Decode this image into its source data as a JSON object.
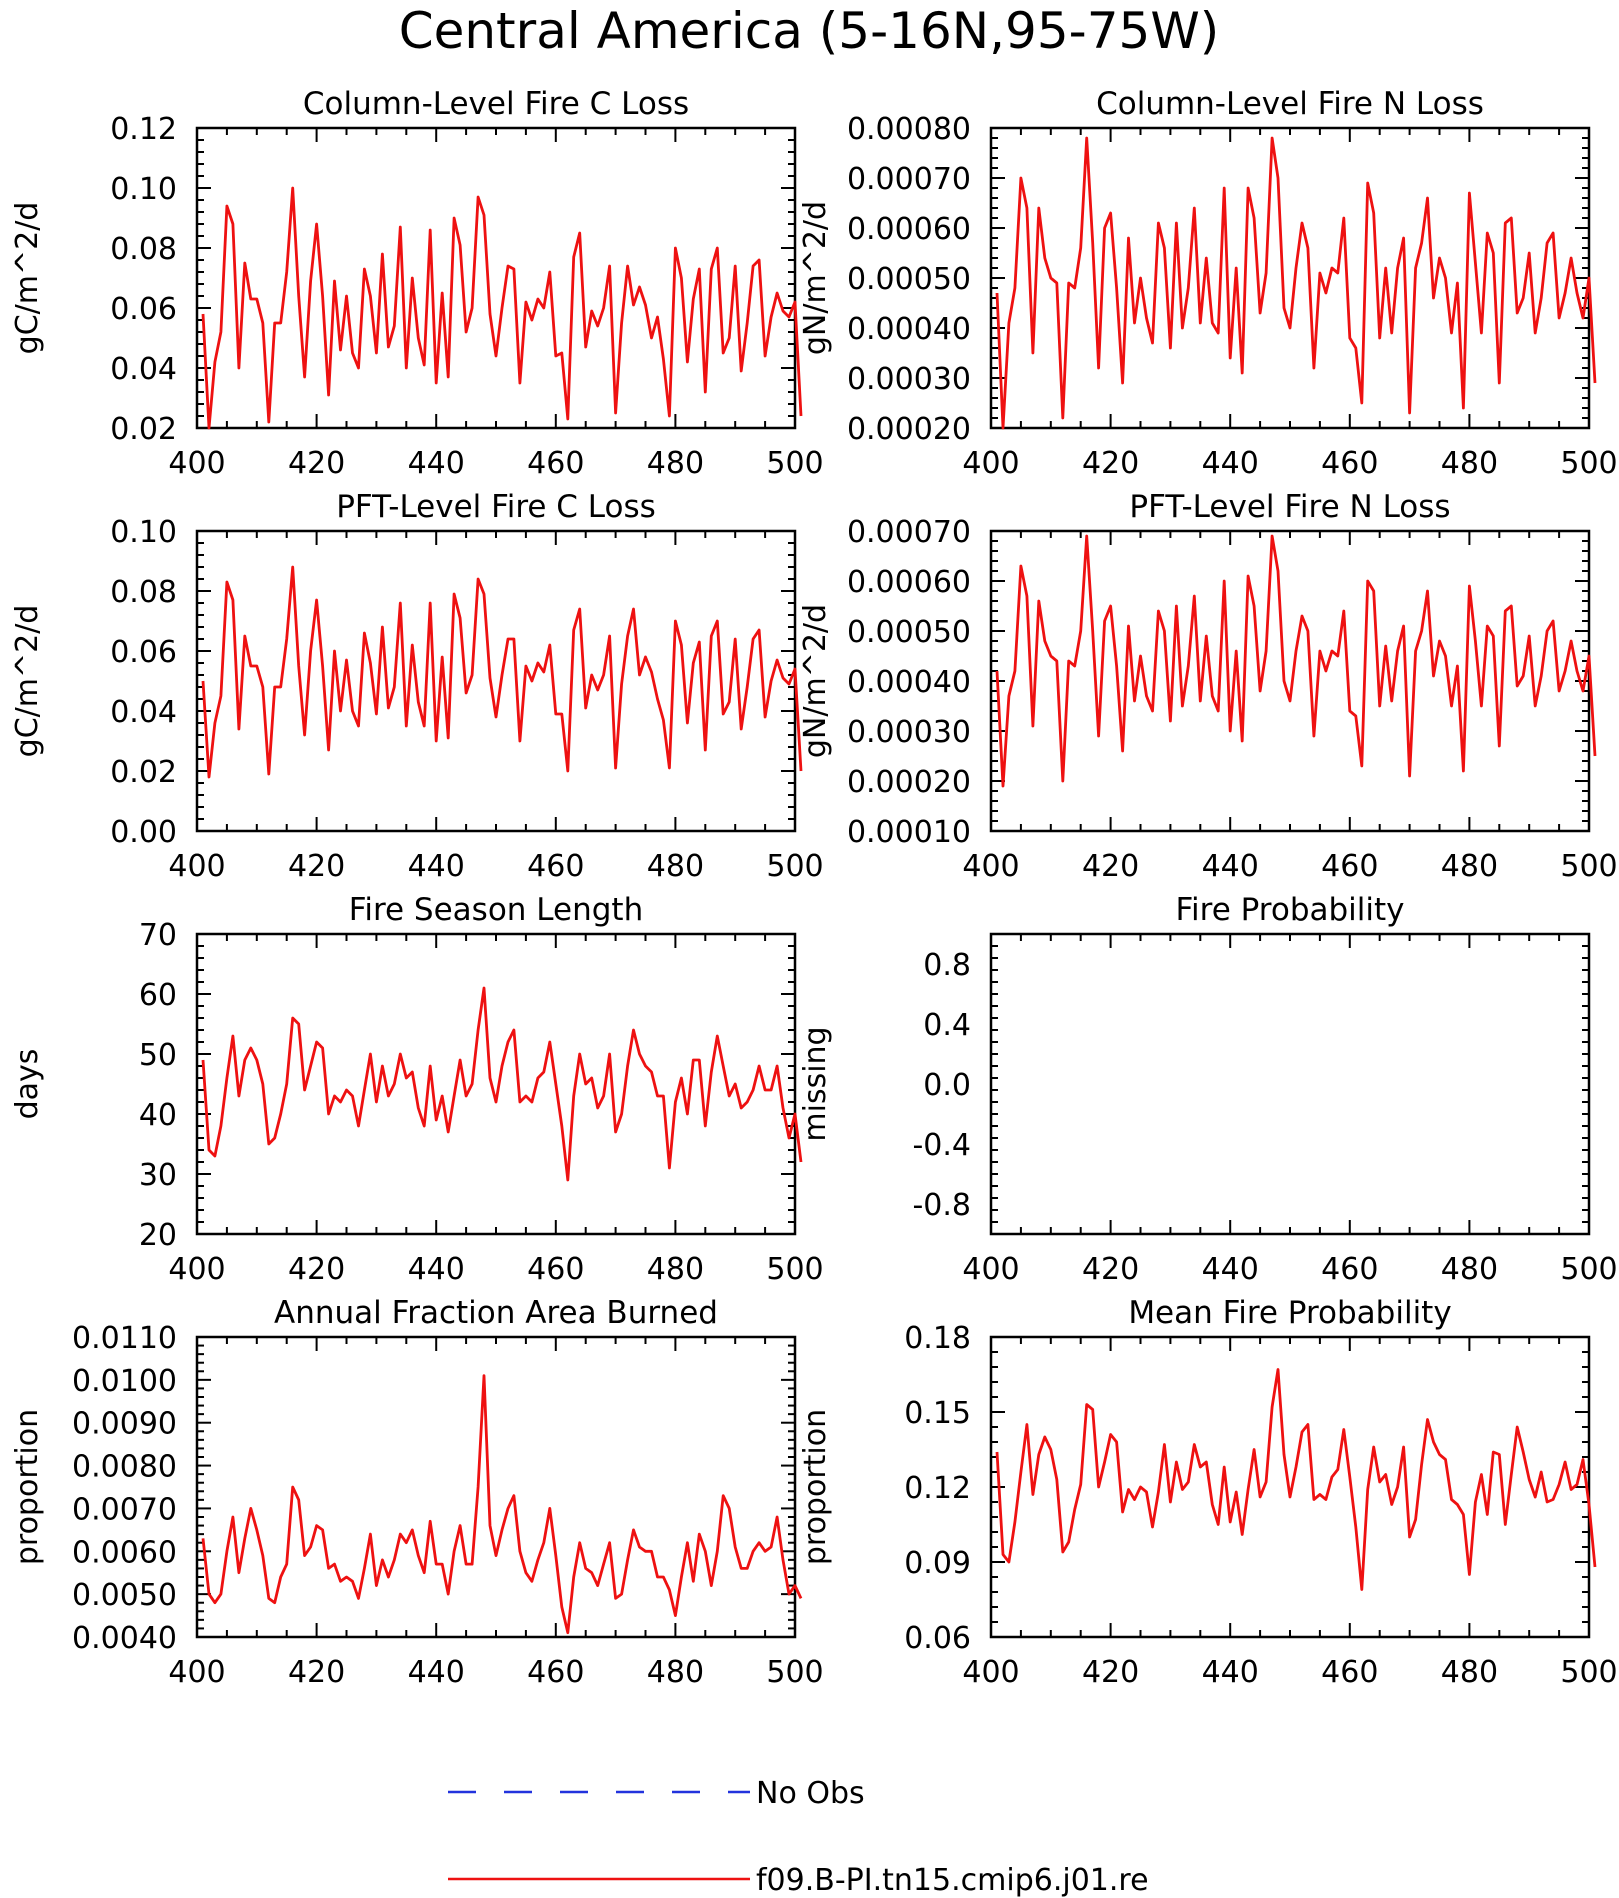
{
  "figure": {
    "title": "Central America (5-16N,95-75W)"
  },
  "legend": {
    "placement": "bottom-center",
    "entries": [
      {
        "label": "No Obs",
        "color": "#2233dd",
        "style": "dashed"
      },
      {
        "label": "f09.B-PI.tn15.cmip6.j01.re",
        "color": "#ee1111",
        "style": "solid"
      }
    ]
  },
  "chart_data": [
    {
      "type": "line",
      "title": "Column-Level Fire C Loss",
      "ylabel": "gC/m^2/d",
      "xlim": [
        400,
        500
      ],
      "ylim": [
        0.02,
        0.12
      ],
      "xticks": [
        "400",
        "420",
        "440",
        "460",
        "480",
        "500"
      ],
      "yticks": [
        "0.02",
        "0.04",
        "0.06",
        "0.08",
        "0.10",
        "0.12"
      ],
      "series": [
        {
          "name": "f09.B-PI.tn15.cmip6.j01.re",
          "color": "#ee1111",
          "x0": 401,
          "dx": 1,
          "values": [
            0.058,
            0.02,
            0.042,
            0.052,
            0.094,
            0.088,
            0.04,
            0.075,
            0.063,
            0.063,
            0.055,
            0.022,
            0.055,
            0.055,
            0.072,
            0.1,
            0.064,
            0.037,
            0.069,
            0.088,
            0.064,
            0.031,
            0.069,
            0.046,
            0.064,
            0.045,
            0.04,
            0.073,
            0.064,
            0.045,
            0.078,
            0.047,
            0.054,
            0.087,
            0.04,
            0.07,
            0.05,
            0.041,
            0.086,
            0.035,
            0.065,
            0.037,
            0.09,
            0.081,
            0.052,
            0.06,
            0.097,
            0.091,
            0.058,
            0.044,
            0.06,
            0.074,
            0.073,
            0.035,
            0.062,
            0.056,
            0.063,
            0.06,
            0.072,
            0.044,
            0.045,
            0.023,
            0.077,
            0.085,
            0.047,
            0.059,
            0.054,
            0.06,
            0.074,
            0.025,
            0.055,
            0.074,
            0.061,
            0.067,
            0.061,
            0.05,
            0.057,
            0.043,
            0.024,
            0.08,
            0.07,
            0.042,
            0.063,
            0.073,
            0.032,
            0.073,
            0.08,
            0.045,
            0.05,
            0.074,
            0.039,
            0.055,
            0.074,
            0.076,
            0.044,
            0.057,
            0.065,
            0.059,
            0.057,
            0.062,
            0.024
          ]
        }
      ]
    },
    {
      "type": "line",
      "title": "Column-Level Fire N Loss",
      "ylabel": "gN/m^2/d",
      "xlim": [
        400,
        500
      ],
      "ylim": [
        0.0002,
        0.0008
      ],
      "xticks": [
        "400",
        "420",
        "440",
        "460",
        "480",
        "500"
      ],
      "yticks": [
        "0.00020",
        "0.00030",
        "0.00040",
        "0.00050",
        "0.00060",
        "0.00070",
        "0.00080"
      ],
      "series": [
        {
          "name": "f09.B-PI.tn15.cmip6.j01.re",
          "color": "#ee1111",
          "x0": 401,
          "dx": 1,
          "values": [
            0.00047,
            0.0002,
            0.00041,
            0.00048,
            0.0007,
            0.00064,
            0.00035,
            0.00064,
            0.00054,
            0.0005,
            0.00049,
            0.00022,
            0.00049,
            0.00048,
            0.00056,
            0.00078,
            0.00057,
            0.00032,
            0.0006,
            0.00063,
            0.00048,
            0.00029,
            0.00058,
            0.00041,
            0.0005,
            0.00042,
            0.00037,
            0.00061,
            0.00056,
            0.00036,
            0.00061,
            0.0004,
            0.00048,
            0.00064,
            0.00041,
            0.00054,
            0.00041,
            0.00039,
            0.00068,
            0.00034,
            0.00052,
            0.00031,
            0.00068,
            0.00062,
            0.00043,
            0.00051,
            0.00078,
            0.0007,
            0.00044,
            0.0004,
            0.00052,
            0.00061,
            0.00056,
            0.00032,
            0.00051,
            0.00047,
            0.00052,
            0.00051,
            0.00062,
            0.00038,
            0.00036,
            0.00025,
            0.00069,
            0.00063,
            0.00038,
            0.00052,
            0.00039,
            0.00052,
            0.00058,
            0.00023,
            0.00052,
            0.00057,
            0.00066,
            0.00046,
            0.00054,
            0.0005,
            0.00039,
            0.00049,
            0.00024,
            0.00067,
            0.00053,
            0.00039,
            0.00059,
            0.00055,
            0.00029,
            0.00061,
            0.00062,
            0.00043,
            0.00046,
            0.00055,
            0.00039,
            0.00046,
            0.00057,
            0.00059,
            0.00042,
            0.00047,
            0.00054,
            0.00047,
            0.00042,
            0.0005,
            0.00029
          ]
        }
      ]
    },
    {
      "type": "line",
      "title": "PFT-Level Fire C Loss",
      "ylabel": "gC/m^2/d",
      "xlim": [
        400,
        500
      ],
      "ylim": [
        0.0,
        0.1
      ],
      "xticks": [
        "400",
        "420",
        "440",
        "460",
        "480",
        "500"
      ],
      "yticks": [
        "0.00",
        "0.02",
        "0.04",
        "0.06",
        "0.08",
        "0.10"
      ],
      "series": [
        {
          "name": "f09.B-PI.tn15.cmip6.j01.re",
          "color": "#ee1111",
          "x0": 401,
          "dx": 1,
          "values": [
            0.05,
            0.018,
            0.036,
            0.045,
            0.083,
            0.077,
            0.034,
            0.065,
            0.055,
            0.055,
            0.048,
            0.019,
            0.048,
            0.048,
            0.064,
            0.088,
            0.055,
            0.032,
            0.06,
            0.077,
            0.055,
            0.027,
            0.06,
            0.04,
            0.057,
            0.04,
            0.035,
            0.066,
            0.056,
            0.039,
            0.068,
            0.041,
            0.048,
            0.076,
            0.035,
            0.062,
            0.043,
            0.035,
            0.076,
            0.03,
            0.058,
            0.031,
            0.079,
            0.071,
            0.046,
            0.052,
            0.084,
            0.079,
            0.051,
            0.038,
            0.052,
            0.064,
            0.064,
            0.03,
            0.055,
            0.05,
            0.056,
            0.053,
            0.062,
            0.039,
            0.039,
            0.02,
            0.067,
            0.074,
            0.041,
            0.052,
            0.047,
            0.052,
            0.065,
            0.021,
            0.049,
            0.065,
            0.074,
            0.052,
            0.058,
            0.053,
            0.044,
            0.037,
            0.021,
            0.07,
            0.062,
            0.036,
            0.056,
            0.063,
            0.027,
            0.065,
            0.07,
            0.039,
            0.043,
            0.064,
            0.034,
            0.048,
            0.064,
            0.067,
            0.038,
            0.05,
            0.057,
            0.051,
            0.049,
            0.054,
            0.02
          ]
        }
      ]
    },
    {
      "type": "line",
      "title": "PFT-Level Fire N Loss",
      "ylabel": "gN/m^2/d",
      "xlim": [
        400,
        500
      ],
      "ylim": [
        0.0001,
        0.0007
      ],
      "xticks": [
        "400",
        "420",
        "440",
        "460",
        "480",
        "500"
      ],
      "yticks": [
        "0.00010",
        "0.00020",
        "0.00030",
        "0.00040",
        "0.00050",
        "0.00060",
        "0.00070"
      ],
      "series": [
        {
          "name": "f09.B-PI.tn15.cmip6.j01.re",
          "color": "#ee1111",
          "x0": 401,
          "dx": 1,
          "values": [
            0.00042,
            0.00019,
            0.00037,
            0.00042,
            0.00063,
            0.00057,
            0.00031,
            0.00056,
            0.00048,
            0.00045,
            0.00044,
            0.0002,
            0.00044,
            0.00043,
            0.0005,
            0.00069,
            0.0005,
            0.00029,
            0.00052,
            0.00055,
            0.00043,
            0.00026,
            0.00051,
            0.00036,
            0.00045,
            0.00037,
            0.00034,
            0.00054,
            0.0005,
            0.00032,
            0.00055,
            0.00035,
            0.00043,
            0.00057,
            0.00036,
            0.00049,
            0.00037,
            0.00034,
            0.0006,
            0.0003,
            0.00046,
            0.00028,
            0.00061,
            0.00055,
            0.00038,
            0.00046,
            0.00069,
            0.00062,
            0.0004,
            0.00036,
            0.00046,
            0.00053,
            0.0005,
            0.00029,
            0.00046,
            0.00042,
            0.00046,
            0.00045,
            0.00054,
            0.00034,
            0.00033,
            0.00023,
            0.0006,
            0.00058,
            0.00035,
            0.00047,
            0.00036,
            0.00046,
            0.00051,
            0.00021,
            0.00046,
            0.0005,
            0.00058,
            0.00041,
            0.00048,
            0.00045,
            0.00035,
            0.00043,
            0.00022,
            0.00059,
            0.00048,
            0.00035,
            0.00051,
            0.00049,
            0.00027,
            0.00054,
            0.00055,
            0.00039,
            0.00041,
            0.00049,
            0.00035,
            0.00041,
            0.0005,
            0.00052,
            0.00038,
            0.00042,
            0.00048,
            0.00042,
            0.00038,
            0.00045,
            0.00025
          ]
        }
      ]
    },
    {
      "type": "line",
      "title": "Fire Season Length",
      "ylabel": "days",
      "xlim": [
        400,
        500
      ],
      "ylim": [
        20,
        70
      ],
      "xticks": [
        "400",
        "420",
        "440",
        "460",
        "480",
        "500"
      ],
      "yticks": [
        "20",
        "30",
        "40",
        "50",
        "60",
        "70"
      ],
      "series": [
        {
          "name": "f09.B-PI.tn15.cmip6.j01.re",
          "color": "#ee1111",
          "x0": 401,
          "dx": 1,
          "values": [
            49,
            34,
            33,
            38,
            46,
            53,
            43,
            49,
            51,
            49,
            45,
            35,
            36,
            40,
            45,
            56,
            55,
            44,
            48,
            52,
            51,
            40,
            43,
            42,
            44,
            43,
            38,
            44,
            50,
            42,
            48,
            43,
            45,
            50,
            46,
            47,
            41,
            38,
            48,
            39,
            43,
            37,
            43,
            49,
            43,
            45,
            54,
            61,
            46,
            42,
            48,
            52,
            54,
            42,
            43,
            42,
            46,
            47,
            52,
            45,
            38,
            29,
            43,
            50,
            45,
            46,
            41,
            43,
            50,
            37,
            40,
            48,
            54,
            50,
            48,
            47,
            43,
            43,
            31,
            42,
            46,
            40,
            49,
            49,
            38,
            47,
            53,
            48,
            43,
            45,
            41,
            42,
            44,
            48,
            44,
            44,
            48,
            41,
            36,
            40,
            32
          ]
        }
      ]
    },
    {
      "type": "line",
      "title": "Fire Probability",
      "ylabel": "missing",
      "xlim": [
        400,
        500
      ],
      "ylim": [
        -1.0,
        1.0
      ],
      "xticks": [
        "400",
        "420",
        "440",
        "460",
        "480",
        "500"
      ],
      "yticks": [
        "-0.8",
        "-0.4",
        "0.0",
        "0.4",
        "0.8"
      ],
      "ytick_values": [
        -0.8,
        -0.4,
        0.0,
        0.4,
        0.8
      ],
      "series": []
    },
    {
      "type": "line",
      "title": "Annual Fraction Area Burned",
      "ylabel": "proportion",
      "xlim": [
        400,
        500
      ],
      "ylim": [
        0.004,
        0.011
      ],
      "xticks": [
        "400",
        "420",
        "440",
        "460",
        "480",
        "500"
      ],
      "yticks": [
        "0.0040",
        "0.0050",
        "0.0060",
        "0.0070",
        "0.0080",
        "0.0090",
        "0.0100",
        "0.0110"
      ],
      "series": [
        {
          "name": "f09.B-PI.tn15.cmip6.j01.re",
          "color": "#ee1111",
          "x0": 401,
          "dx": 1,
          "values": [
            0.0063,
            0.005,
            0.0048,
            0.005,
            0.006,
            0.0068,
            0.0055,
            0.0063,
            0.007,
            0.0065,
            0.0059,
            0.0049,
            0.0048,
            0.0054,
            0.0057,
            0.0075,
            0.0072,
            0.0059,
            0.0061,
            0.0066,
            0.0065,
            0.0056,
            0.0057,
            0.0053,
            0.0054,
            0.0053,
            0.0049,
            0.0056,
            0.0064,
            0.0052,
            0.0058,
            0.0054,
            0.0058,
            0.0064,
            0.0062,
            0.0065,
            0.0059,
            0.0055,
            0.0067,
            0.0057,
            0.0057,
            0.005,
            0.006,
            0.0066,
            0.0057,
            0.0057,
            0.0075,
            0.0101,
            0.0066,
            0.0059,
            0.0065,
            0.007,
            0.0073,
            0.006,
            0.0055,
            0.0053,
            0.0058,
            0.0062,
            0.007,
            0.0059,
            0.0047,
            0.0041,
            0.0054,
            0.0062,
            0.0056,
            0.0055,
            0.0052,
            0.0057,
            0.0062,
            0.0049,
            0.005,
            0.0058,
            0.0065,
            0.0061,
            0.006,
            0.006,
            0.0054,
            0.0054,
            0.0051,
            0.0045,
            0.0054,
            0.0062,
            0.0053,
            0.0064,
            0.006,
            0.0052,
            0.006,
            0.0073,
            0.007,
            0.0061,
            0.0056,
            0.0056,
            0.006,
            0.0062,
            0.006,
            0.0061,
            0.0068,
            0.0058,
            0.005,
            0.0052,
            0.0049
          ]
        }
      ]
    },
    {
      "type": "line",
      "title": "Mean Fire Probability",
      "ylabel": "proportion",
      "xlim": [
        400,
        500
      ],
      "ylim": [
        0.06,
        0.18
      ],
      "xticks": [
        "400",
        "420",
        "440",
        "460",
        "480",
        "500"
      ],
      "yticks": [
        "0.06",
        "0.09",
        "0.12",
        "0.15",
        "0.18"
      ],
      "series": [
        {
          "name": "f09.B-PI.tn15.cmip6.j01.re",
          "color": "#ee1111",
          "x0": 401,
          "dx": 1,
          "values": [
            0.134,
            0.093,
            0.09,
            0.106,
            0.126,
            0.145,
            0.117,
            0.133,
            0.14,
            0.135,
            0.123,
            0.094,
            0.098,
            0.111,
            0.121,
            0.153,
            0.151,
            0.12,
            0.13,
            0.141,
            0.138,
            0.11,
            0.119,
            0.115,
            0.12,
            0.118,
            0.104,
            0.118,
            0.137,
            0.114,
            0.13,
            0.119,
            0.122,
            0.137,
            0.128,
            0.13,
            0.113,
            0.105,
            0.128,
            0.106,
            0.118,
            0.101,
            0.119,
            0.135,
            0.116,
            0.122,
            0.152,
            0.167,
            0.133,
            0.116,
            0.128,
            0.142,
            0.145,
            0.115,
            0.117,
            0.115,
            0.124,
            0.127,
            0.143,
            0.124,
            0.104,
            0.079,
            0.119,
            0.136,
            0.122,
            0.125,
            0.113,
            0.12,
            0.136,
            0.1,
            0.107,
            0.129,
            0.147,
            0.138,
            0.133,
            0.131,
            0.115,
            0.113,
            0.109,
            0.085,
            0.114,
            0.125,
            0.109,
            0.134,
            0.133,
            0.105,
            0.125,
            0.144,
            0.134,
            0.123,
            0.116,
            0.126,
            0.114,
            0.115,
            0.121,
            0.13,
            0.119,
            0.121,
            0.131,
            0.113,
            0.088
          ]
        }
      ]
    }
  ]
}
